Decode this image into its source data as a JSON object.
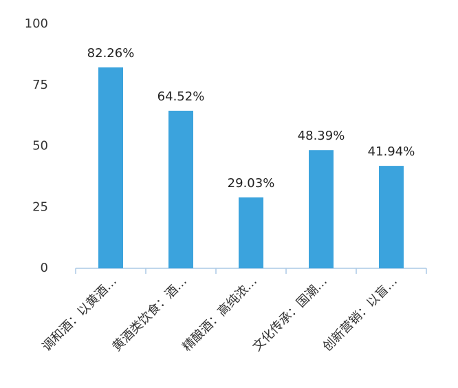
{
  "chart_data": {
    "type": "bar",
    "categories": [
      "调和酒：以黄酒…",
      "黄酒类饮食：酒…",
      "精酿酒：高纯浓…",
      "文化传承：国潮…",
      "创新营销：以盲…"
    ],
    "values": [
      82.26,
      64.52,
      29.03,
      48.39,
      41.94
    ],
    "value_labels": [
      "82.26%",
      "64.52%",
      "29.03%",
      "48.39%",
      "41.94%"
    ],
    "color": "#3ba3dd",
    "ylim": [
      0,
      100
    ],
    "yticks": [
      0,
      25,
      50,
      75,
      100
    ],
    "grid": false
  }
}
